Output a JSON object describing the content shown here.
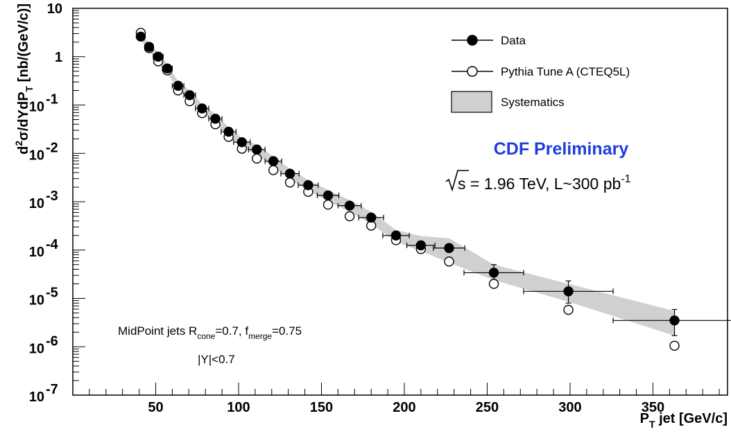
{
  "chart_data": {
    "type": "scatter",
    "x_scale": "linear",
    "y_scale": "log",
    "xlim": [
      0,
      395
    ],
    "ylim": [
      1e-07,
      10
    ],
    "grid": false,
    "x_ticks": [
      {
        "value": 50,
        "label": "50"
      },
      {
        "value": 100,
        "label": "100"
      },
      {
        "value": 150,
        "label": "150"
      },
      {
        "value": 200,
        "label": "200"
      },
      {
        "value": 250,
        "label": "250"
      },
      {
        "value": 300,
        "label": "300"
      },
      {
        "value": 350,
        "label": "350"
      }
    ],
    "y_ticks": [
      {
        "value": 10,
        "label": "10"
      },
      {
        "value": 1,
        "label": "1"
      },
      {
        "value": 0.1,
        "mant": "10",
        "exp": "-1"
      },
      {
        "value": 0.01,
        "mant": "10",
        "exp": "-2"
      },
      {
        "value": 0.001,
        "mant": "10",
        "exp": "-3"
      },
      {
        "value": 0.0001,
        "mant": "10",
        "exp": "-4"
      },
      {
        "value": 1e-05,
        "mant": "10",
        "exp": "-5"
      },
      {
        "value": 1e-06,
        "mant": "10",
        "exp": "-6"
      },
      {
        "value": 1e-07,
        "mant": "10",
        "exp": "-7"
      }
    ],
    "xlabel": {
      "p": "P",
      "sub": "T",
      "rest": " jet [GeV/c]"
    },
    "ylabel": {
      "d": "d",
      "sup": "2",
      "mid": "σ/dYdP",
      "sub": "T",
      "rest": " [nb/(GeV/c)]"
    },
    "series": [
      {
        "name": "Data",
        "marker": "filled-circle",
        "color": "#000000",
        "points": [
          {
            "x": 41,
            "y": 2.6,
            "xerr": 0
          },
          {
            "x": 46,
            "y": 1.6,
            "xerr": 2.5
          },
          {
            "x": 51.5,
            "y": 1.0,
            "xerr": 3
          },
          {
            "x": 57,
            "y": 0.57,
            "xerr": 3
          },
          {
            "x": 63.5,
            "y": 0.25,
            "xerr": 3.5
          },
          {
            "x": 70.5,
            "y": 0.16,
            "xerr": 3.5
          },
          {
            "x": 78,
            "y": 0.085,
            "xerr": 4
          },
          {
            "x": 86,
            "y": 0.052,
            "xerr": 4
          },
          {
            "x": 94,
            "y": 0.028,
            "xerr": 4.5
          },
          {
            "x": 102,
            "y": 0.017,
            "xerr": 5
          },
          {
            "x": 111,
            "y": 0.012,
            "xerr": 5
          },
          {
            "x": 121,
            "y": 0.0069,
            "xerr": 5
          },
          {
            "x": 131,
            "y": 0.0038,
            "xerr": 5.5
          },
          {
            "x": 142,
            "y": 0.0022,
            "xerr": 6
          },
          {
            "x": 154,
            "y": 0.00135,
            "xerr": 6.5
          },
          {
            "x": 167,
            "y": 0.00083,
            "xerr": 7
          },
          {
            "x": 180,
            "y": 0.00047,
            "xerr": 7.5
          },
          {
            "x": 195,
            "y": 0.0002,
            "xerr": 8
          },
          {
            "x": 210,
            "y": 0.000125,
            "xerr": 8.5
          },
          {
            "x": 227,
            "y": 0.00011,
            "xerr": 9.5
          },
          {
            "x": 254,
            "y": 3.4e-05,
            "xerr": 18,
            "yerr_lo": 1e-05,
            "yerr_hi": 1.6e-05
          },
          {
            "x": 299,
            "y": 1.4e-05,
            "xerr": 27,
            "yerr_lo": 6e-06,
            "yerr_hi": 9e-06
          },
          {
            "x": 363,
            "y": 3.5e-06,
            "xerr": 37,
            "yerr_lo": 1.8e-06,
            "yerr_hi": 2.4e-06
          }
        ]
      },
      {
        "name": "Pythia Tune A (CTEQ5L)",
        "marker": "open-circle",
        "color": "#000000",
        "points": [
          {
            "x": 41,
            "y": 3.1,
            "xerr": 0
          },
          {
            "x": 46,
            "y": 1.5,
            "xerr": 0
          },
          {
            "x": 51.5,
            "y": 0.8,
            "xerr": 0
          },
          {
            "x": 57,
            "y": 0.52,
            "xerr": 0
          },
          {
            "x": 63.5,
            "y": 0.2,
            "xerr": 0
          },
          {
            "x": 70.5,
            "y": 0.12,
            "xerr": 0
          },
          {
            "x": 78,
            "y": 0.068,
            "xerr": 0
          },
          {
            "x": 86,
            "y": 0.04,
            "xerr": 0
          },
          {
            "x": 94,
            "y": 0.022,
            "xerr": 0
          },
          {
            "x": 102,
            "y": 0.0125,
            "xerr": 0
          },
          {
            "x": 111,
            "y": 0.0078,
            "xerr": 0
          },
          {
            "x": 121,
            "y": 0.0045,
            "xerr": 0
          },
          {
            "x": 131,
            "y": 0.0025,
            "xerr": 0
          },
          {
            "x": 142,
            "y": 0.0016,
            "xerr": 0
          },
          {
            "x": 154,
            "y": 0.00087,
            "xerr": 0
          },
          {
            "x": 167,
            "y": 0.0005,
            "xerr": 0
          },
          {
            "x": 180,
            "y": 0.00032,
            "xerr": 0
          },
          {
            "x": 195,
            "y": 0.00016,
            "xerr": 0
          },
          {
            "x": 210,
            "y": 0.000105,
            "xerr": 0
          },
          {
            "x": 227,
            "y": 5.8e-05,
            "xerr": 0
          },
          {
            "x": 254,
            "y": 2e-05,
            "xerr": 0
          },
          {
            "x": 299,
            "y": 5.8e-06,
            "xerr": 0
          },
          {
            "x": 363,
            "y": 1.05e-06,
            "xerr": 0
          }
        ]
      }
    ],
    "systematics_band": {
      "name": "Systematics",
      "color": "#d0d0d0",
      "x": [
        41,
        46,
        51.5,
        57,
        63.5,
        70.5,
        78,
        86,
        94,
        102,
        111,
        121,
        131,
        142,
        154,
        167,
        180,
        195,
        210,
        227,
        254,
        299,
        363
      ],
      "lower": [
        2.2,
        1.3,
        0.82,
        0.47,
        0.2,
        0.13,
        0.068,
        0.041,
        0.022,
        0.0132,
        0.0093,
        0.0053,
        0.0029,
        0.0017,
        0.00102,
        0.00062,
        0.00035,
        0.000148,
        9.5e-05,
        5.5e-05,
        2.4e-05,
        8.5e-06,
        1.7e-06
      ],
      "upper": [
        3.0,
        1.9,
        1.2,
        0.7,
        0.31,
        0.2,
        0.105,
        0.065,
        0.035,
        0.021,
        0.015,
        0.0087,
        0.0048,
        0.0028,
        0.00175,
        0.00108,
        0.00062,
        0.00026,
        0.000195,
        0.000175,
        5e-05,
        2e-05,
        5.5e-06
      ]
    },
    "legend": {
      "placement": "top-right",
      "entries": [
        {
          "label": "Data",
          "symbol": "filled-circle"
        },
        {
          "label": "Pythia Tune A (CTEQ5L)",
          "symbol": "open-circle"
        },
        {
          "label": "Systematics",
          "symbol": "band"
        }
      ]
    },
    "annotations": {
      "experiment": "CDF Preliminary",
      "experiment_color": "#1e3cdc",
      "energy_a": "s",
      "energy_b": " = 1.96 TeV, L~300 pb",
      "energy_sup": "-1",
      "jets_a": "MidPoint jets R",
      "jets_sub1": "cone",
      "jets_b": "=0.7, f",
      "jets_sub2": "merge",
      "jets_c": "=0.75",
      "rapidity": "|Y|<0.7"
    }
  }
}
